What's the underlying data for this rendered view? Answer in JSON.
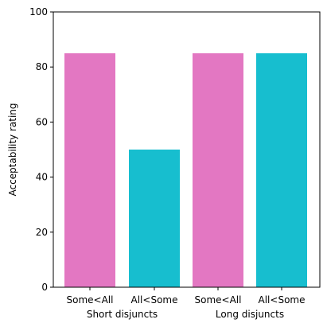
{
  "chart_data": {
    "type": "bar",
    "categories": [
      "Some<All",
      "All<Some",
      "Some<All",
      "All<Some"
    ],
    "groups": [
      "Short disjuncts",
      "Long disjuncts"
    ],
    "values": [
      85,
      50,
      85,
      85
    ],
    "colors": [
      "#e377c2",
      "#17becf",
      "#e377c2",
      "#17becf"
    ],
    "title": "",
    "xlabel": "",
    "ylabel": "Acceptability rating",
    "ylim": [
      0,
      100
    ],
    "yticks": [
      0,
      20,
      40,
      60,
      80,
      100
    ],
    "grid": false
  }
}
